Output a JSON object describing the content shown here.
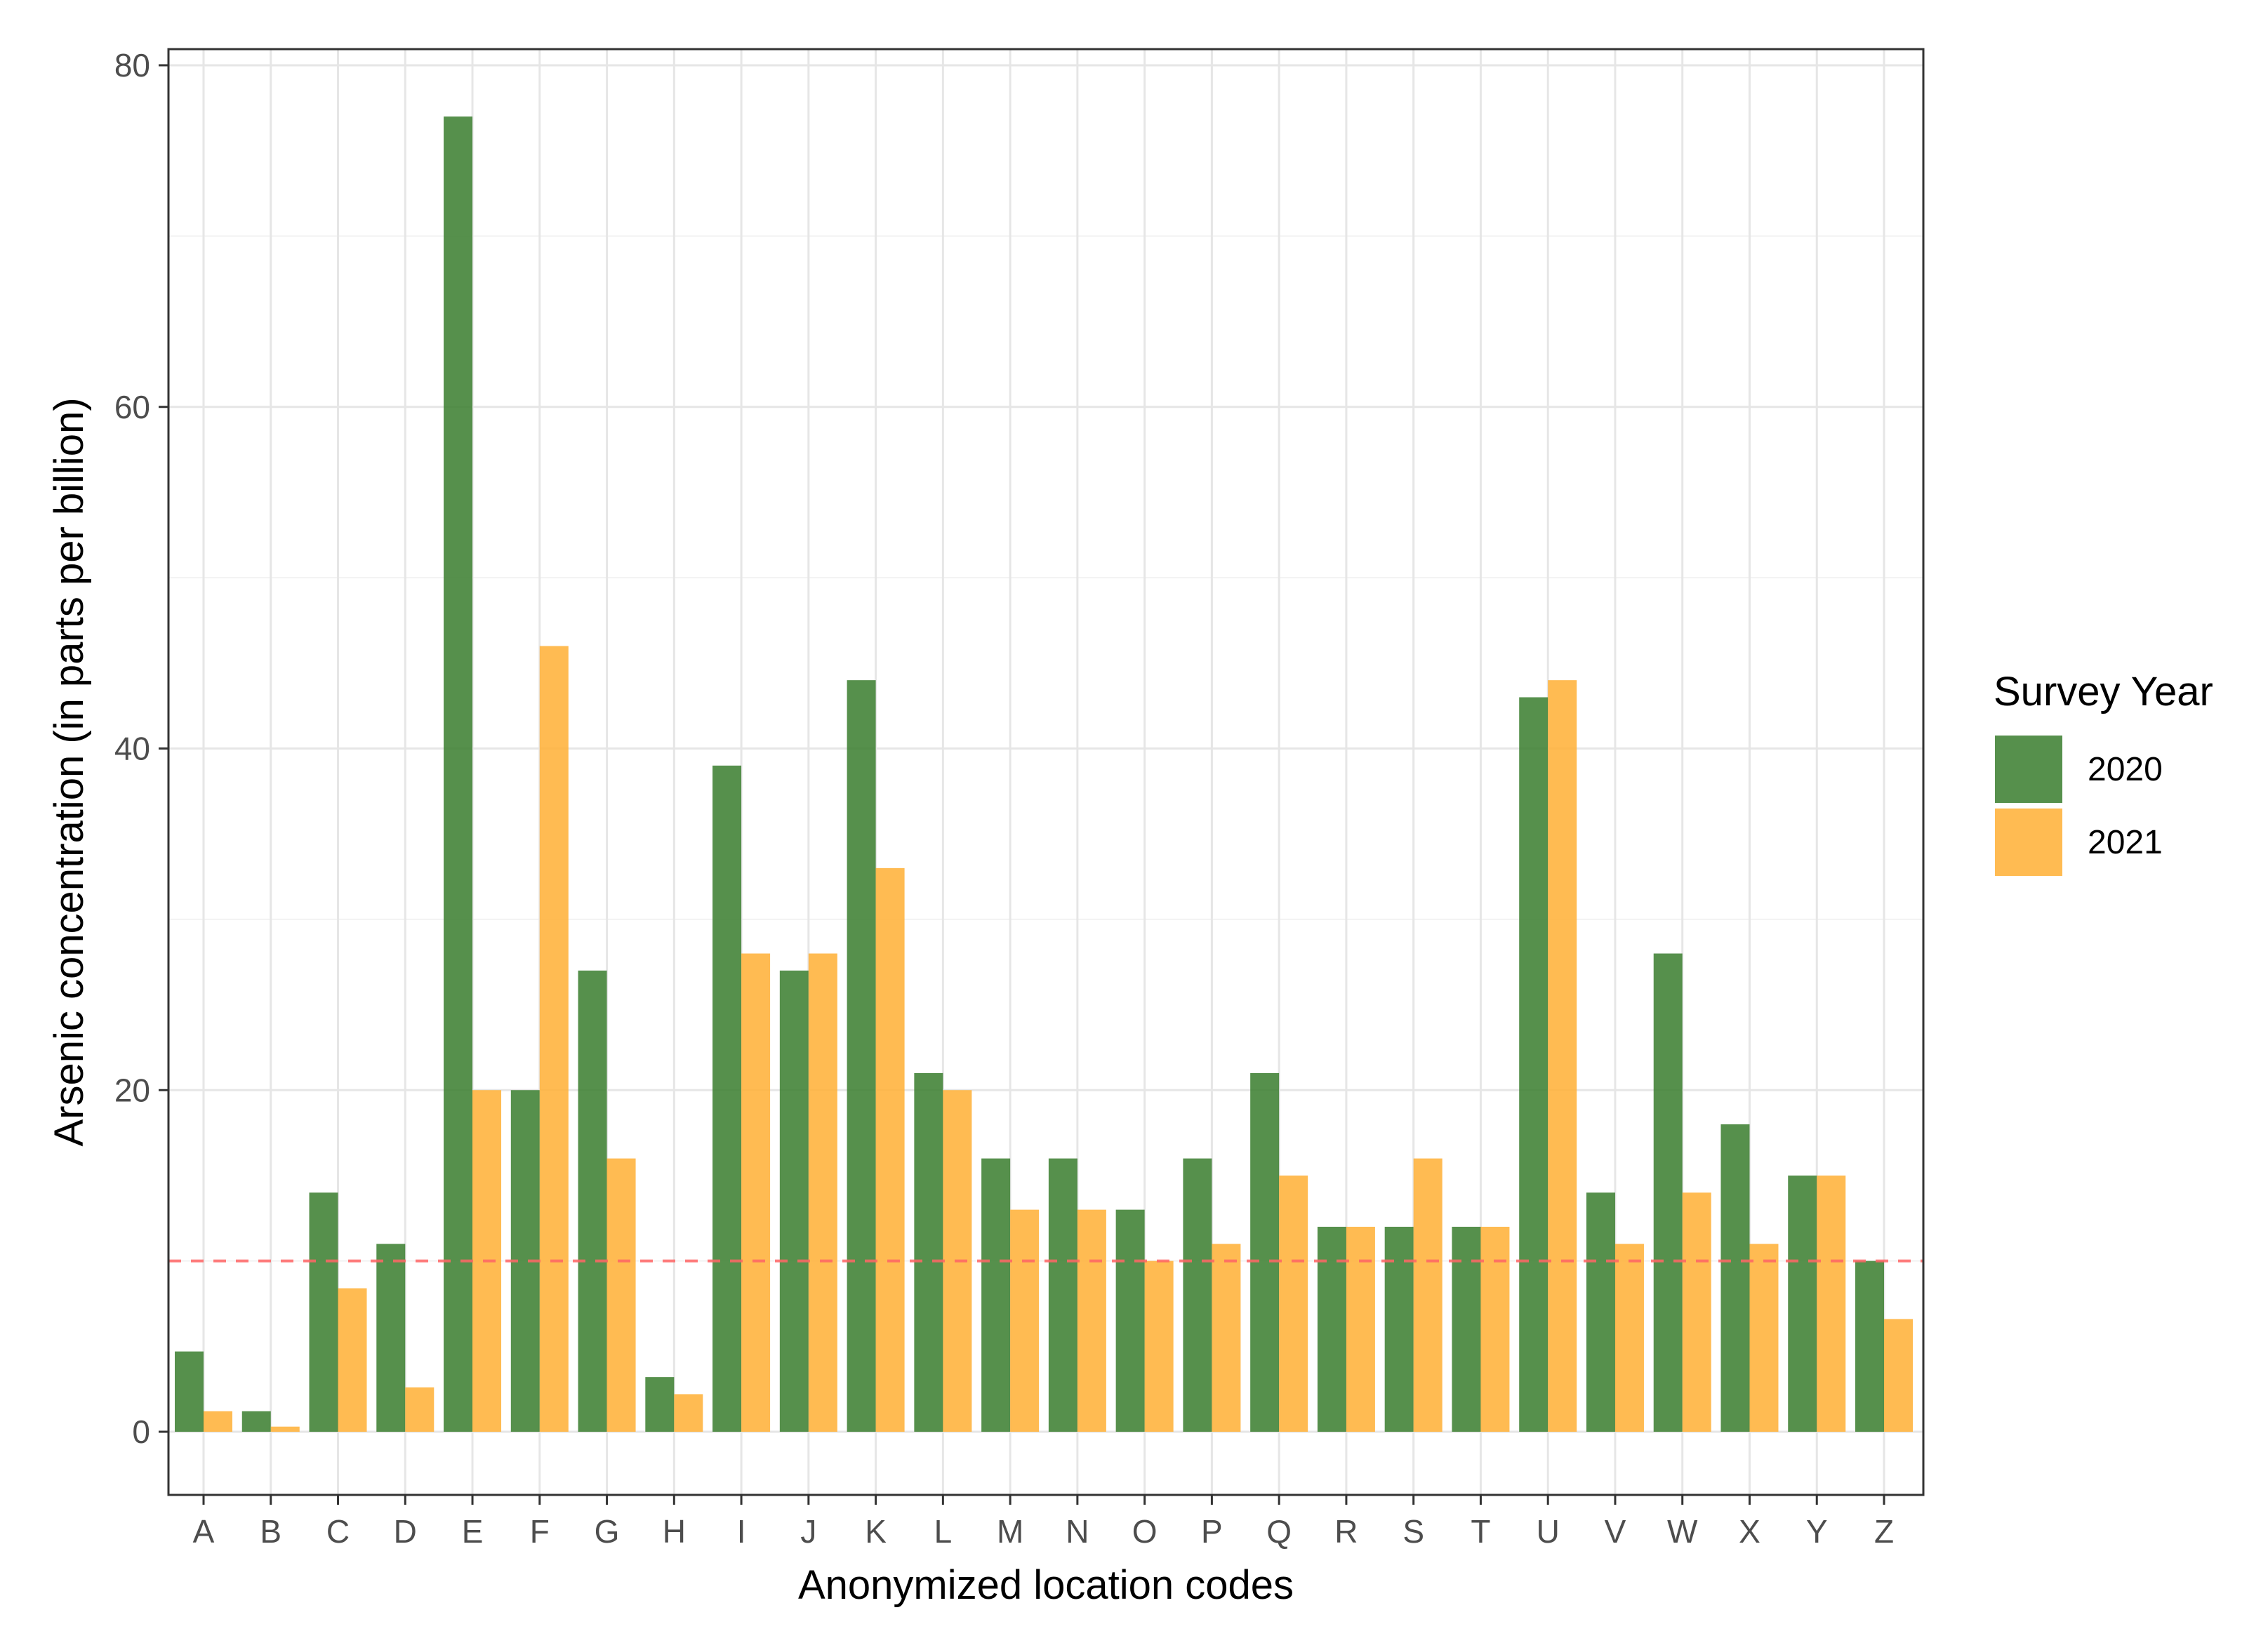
{
  "chart_data": {
    "type": "bar",
    "title": "",
    "xlabel": "Anonymized location codes",
    "ylabel": "Arsenic concentration (in parts per billion)",
    "ylim": [
      0,
      80
    ],
    "yticks": [
      0,
      20,
      40,
      60,
      80
    ],
    "grid": true,
    "categories": [
      "A",
      "B",
      "C",
      "D",
      "E",
      "F",
      "G",
      "H",
      "I",
      "J",
      "K",
      "L",
      "M",
      "N",
      "O",
      "P",
      "Q",
      "R",
      "S",
      "T",
      "U",
      "V",
      "W",
      "X",
      "Y",
      "Z"
    ],
    "series": [
      {
        "name": "2020",
        "color": "#3f8133",
        "values": [
          4.7,
          1.2,
          14,
          11,
          77,
          20,
          27,
          3.2,
          39,
          27,
          44,
          21,
          16,
          16,
          13,
          16,
          21,
          12,
          12,
          12,
          43,
          14,
          28,
          18,
          15,
          10
        ]
      },
      {
        "name": "2021",
        "color": "#ffb23a",
        "values": [
          1.2,
          0.3,
          8.4,
          2.6,
          20,
          46,
          16,
          2.2,
          28,
          28,
          33,
          20,
          13,
          13,
          10,
          11,
          15,
          12,
          16,
          12,
          44,
          11,
          14,
          11,
          15,
          6.6
        ]
      }
    ],
    "reference_line": {
      "value": 10,
      "color": "#ff6666",
      "style": "dashed"
    },
    "legend": {
      "title": "Survey Year",
      "placement": "right"
    }
  }
}
